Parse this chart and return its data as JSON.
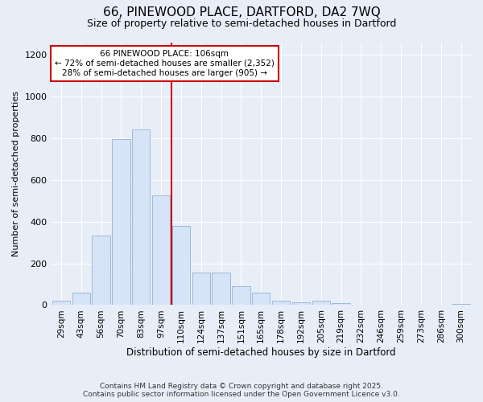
{
  "title_line1": "66, PINEWOOD PLACE, DARTFORD, DA2 7WQ",
  "title_line2": "Size of property relative to semi-detached houses in Dartford",
  "xlabel": "Distribution of semi-detached houses by size in Dartford",
  "ylabel": "Number of semi-detached properties",
  "bar_labels": [
    "29sqm",
    "43sqm",
    "56sqm",
    "70sqm",
    "83sqm",
    "97sqm",
    "110sqm",
    "124sqm",
    "137sqm",
    "151sqm",
    "165sqm",
    "178sqm",
    "192sqm",
    "205sqm",
    "219sqm",
    "232sqm",
    "246sqm",
    "259sqm",
    "273sqm",
    "286sqm",
    "300sqm"
  ],
  "bar_heights": [
    20,
    60,
    335,
    795,
    840,
    525,
    380,
    155,
    155,
    90,
    60,
    20,
    15,
    20,
    10,
    0,
    0,
    0,
    0,
    0,
    5
  ],
  "bar_color": "#d6e4f7",
  "bar_edge_color": "#a0b8d8",
  "vline_color": "#cc0000",
  "annotation_title": "66 PINEWOOD PLACE: 106sqm",
  "annotation_line2": "← 72% of semi-detached houses are smaller (2,352)",
  "annotation_line3": "28% of semi-detached houses are larger (905) →",
  "annotation_box_color": "#ffffff",
  "annotation_box_edge": "#cc0000",
  "ylim": [
    0,
    1260
  ],
  "yticks": [
    0,
    200,
    400,
    600,
    800,
    1000,
    1200
  ],
  "background_color": "#e8eef8",
  "footer_line1": "Contains HM Land Registry data © Crown copyright and database right 2025.",
  "footer_line2": "Contains public sector information licensed under the Open Government Licence v3.0."
}
